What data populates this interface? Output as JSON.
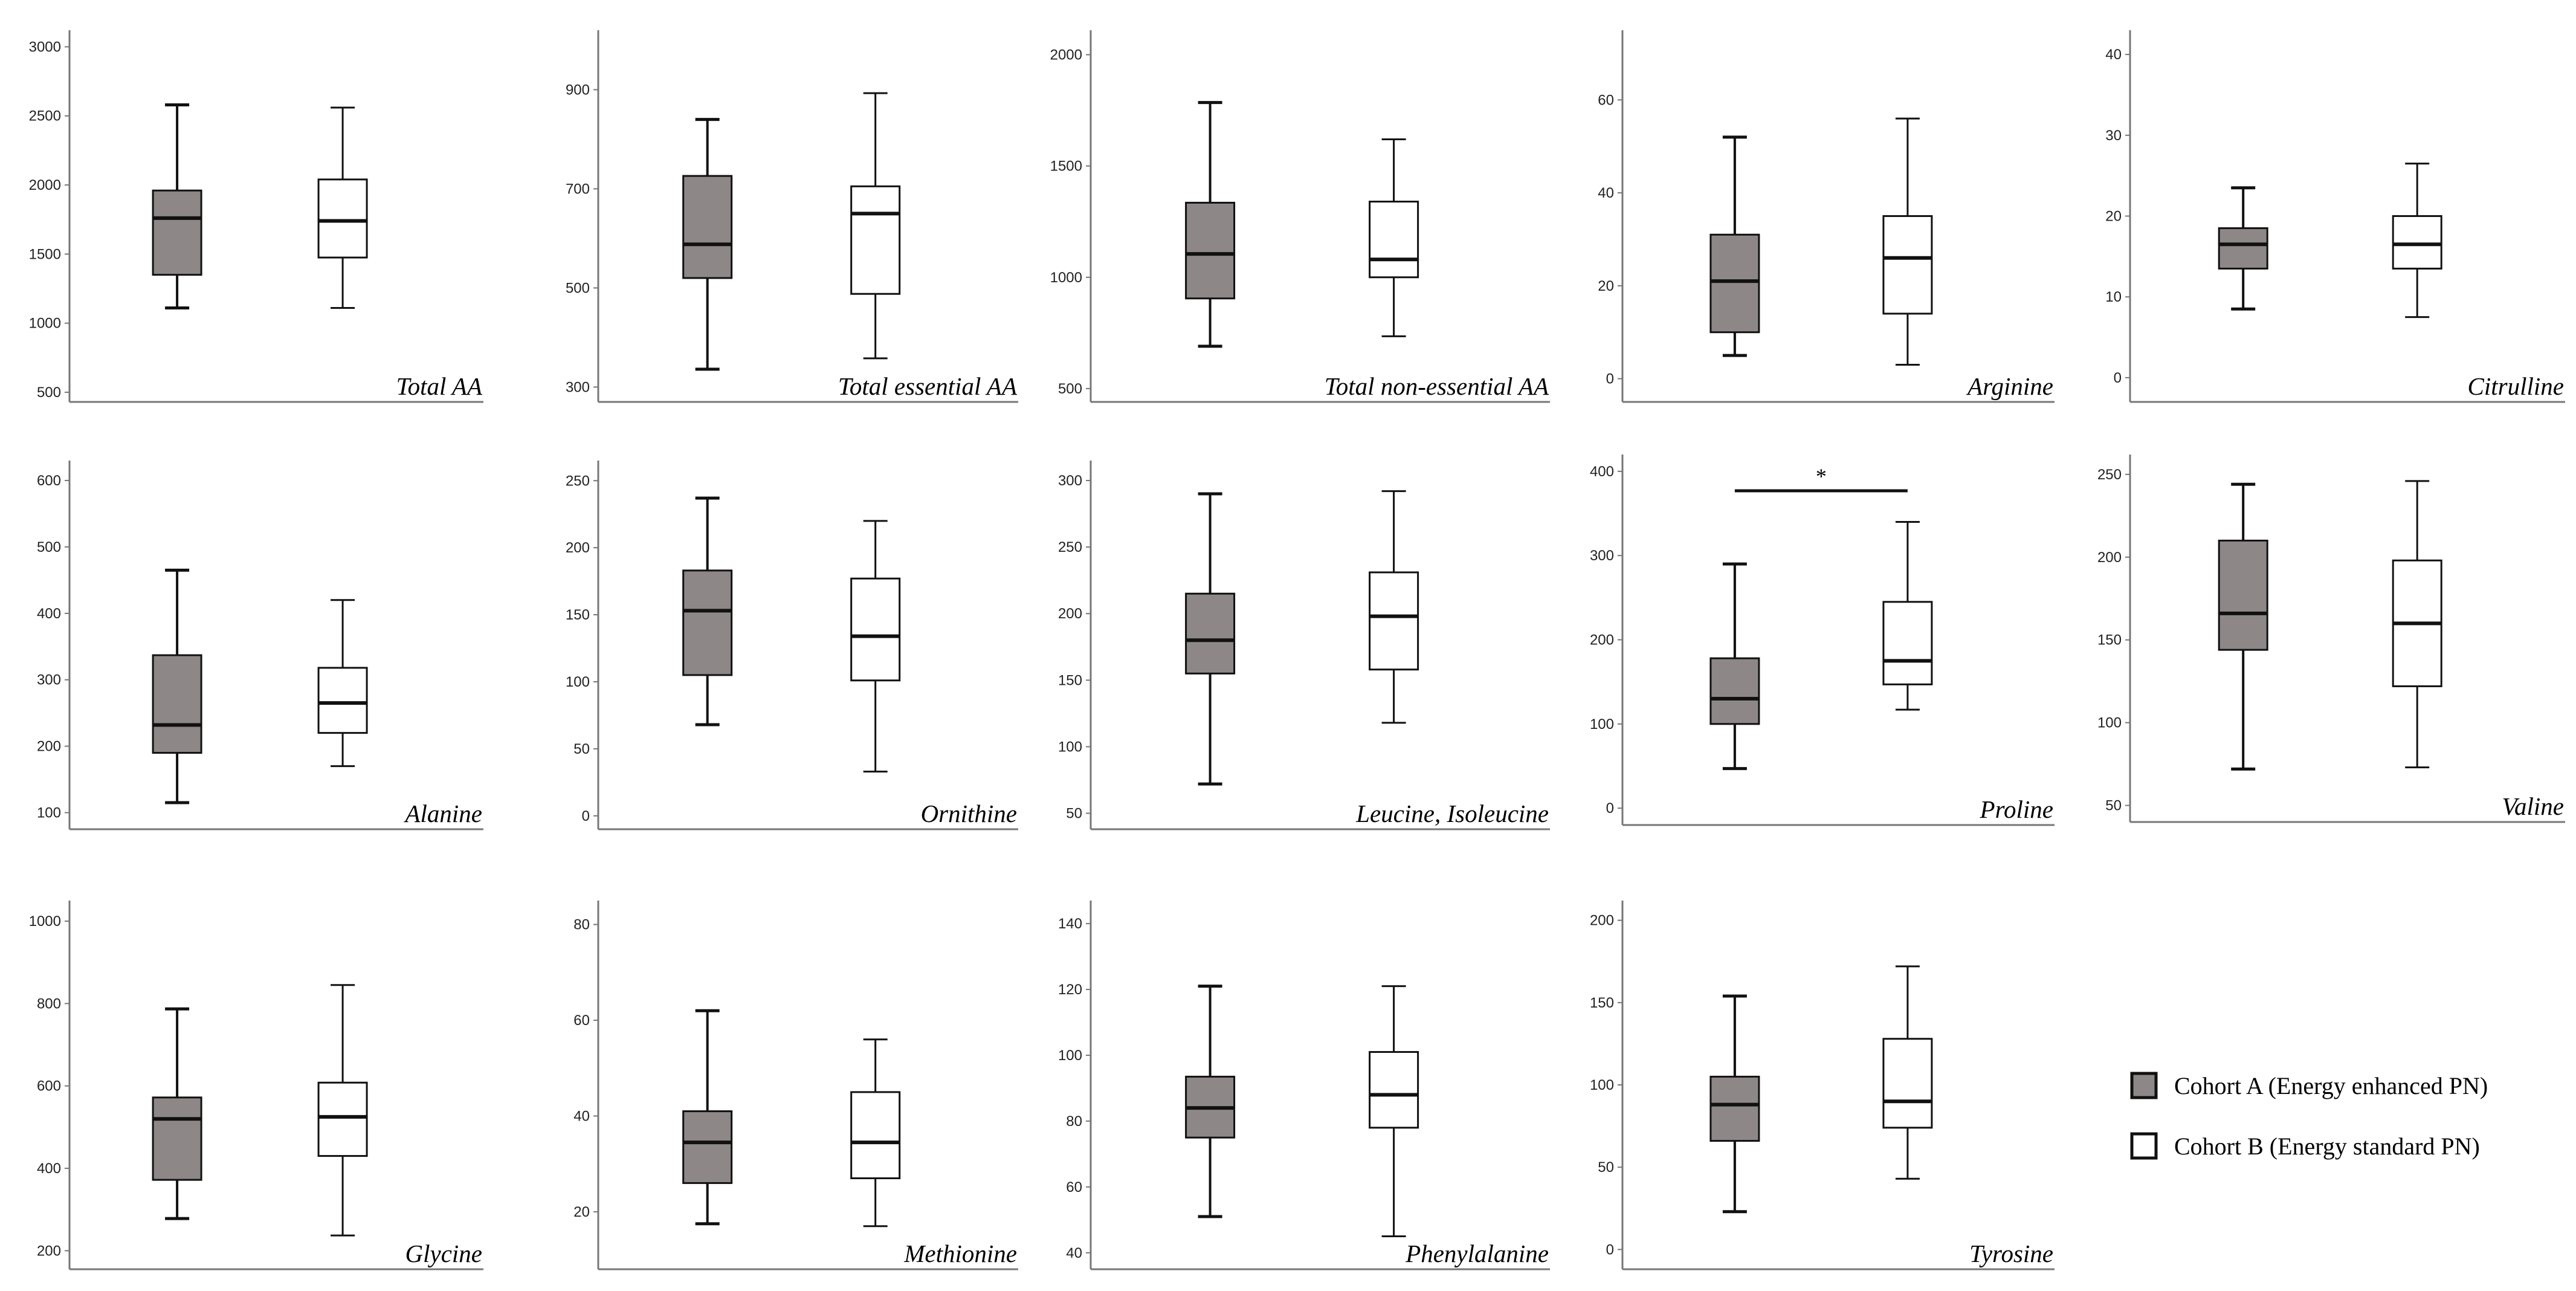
{
  "chart_data": [
    {
      "type": "box",
      "title": "Total AA",
      "yticks": [
        500,
        1000,
        1500,
        2000,
        2500,
        3000
      ],
      "ylim": [
        430,
        3120
      ],
      "series": [
        {
          "name": "Cohort A",
          "min": 1110,
          "q1": 1350,
          "median": 1760,
          "q3": 1960,
          "max": 2580
        },
        {
          "name": "Cohort B",
          "min": 1110,
          "q1": 1475,
          "median": 1740,
          "q3": 2040,
          "max": 2560
        }
      ]
    },
    {
      "type": "box",
      "title": "Total essential AA",
      "yticks": [
        300,
        500,
        700,
        900
      ],
      "ylim": [
        270,
        1020
      ],
      "series": [
        {
          "name": "Cohort A",
          "min": 336,
          "q1": 520,
          "median": 588,
          "q3": 726,
          "max": 840
        },
        {
          "name": "Cohort B",
          "min": 358,
          "q1": 488,
          "median": 650,
          "q3": 705,
          "max": 893
        }
      ]
    },
    {
      "type": "box",
      "title": "Total non-essential AA",
      "yticks": [
        500,
        1000,
        1500,
        2000
      ],
      "ylim": [
        440,
        2110
      ],
      "series": [
        {
          "name": "Cohort A",
          "min": 690,
          "q1": 905,
          "median": 1105,
          "q3": 1335,
          "max": 1785
        },
        {
          "name": "Cohort B",
          "min": 735,
          "q1": 1000,
          "median": 1080,
          "q3": 1340,
          "max": 1620
        }
      ]
    },
    {
      "type": "box",
      "title": "Arginine",
      "yticks": [
        0,
        20,
        40,
        60
      ],
      "ylim": [
        -5,
        75
      ],
      "series": [
        {
          "name": "Cohort A",
          "min": 5,
          "q1": 10,
          "median": 21,
          "q3": 31,
          "max": 52
        },
        {
          "name": "Cohort B",
          "min": 3,
          "q1": 14,
          "median": 26,
          "q3": 35,
          "max": 56
        }
      ]
    },
    {
      "type": "box",
      "title": "Citrulline",
      "yticks": [
        0,
        10,
        20,
        30,
        40
      ],
      "ylim": [
        -3,
        43
      ],
      "series": [
        {
          "name": "Cohort A",
          "min": 8.5,
          "q1": 13.5,
          "median": 16.5,
          "q3": 18.5,
          "max": 23.5
        },
        {
          "name": "Cohort B",
          "min": 7.5,
          "q1": 13.5,
          "median": 16.5,
          "q3": 20,
          "max": 26.5
        }
      ]
    },
    {
      "type": "box",
      "title": "Alanine",
      "yticks": [
        100,
        200,
        300,
        400,
        500,
        600
      ],
      "ylim": [
        75,
        630
      ],
      "series": [
        {
          "name": "Cohort A",
          "min": 115,
          "q1": 190,
          "median": 232,
          "q3": 337,
          "max": 465
        },
        {
          "name": "Cohort B",
          "min": 170,
          "q1": 220,
          "median": 265,
          "q3": 318,
          "max": 420
        }
      ]
    },
    {
      "type": "box",
      "title": "Ornithine",
      "yticks": [
        0,
        50,
        100,
        150,
        200,
        250
      ],
      "ylim": [
        -10,
        265
      ],
      "series": [
        {
          "name": "Cohort A",
          "min": 68,
          "q1": 105,
          "median": 153,
          "q3": 183,
          "max": 237
        },
        {
          "name": "Cohort B",
          "min": 33,
          "q1": 101,
          "median": 134,
          "q3": 177,
          "max": 220
        }
      ]
    },
    {
      "type": "box",
      "title": "Leucine, Isoleucine",
      "yticks": [
        50,
        100,
        150,
        200,
        250,
        300
      ],
      "ylim": [
        38,
        315
      ],
      "series": [
        {
          "name": "Cohort A",
          "min": 72,
          "q1": 155,
          "median": 180,
          "q3": 215,
          "max": 290
        },
        {
          "name": "Cohort B",
          "min": 118,
          "q1": 158,
          "median": 198,
          "q3": 231,
          "max": 292
        }
      ]
    },
    {
      "type": "box",
      "title": "Proline",
      "yticks": [
        0,
        100,
        200,
        300,
        400
      ],
      "ylim": [
        -20,
        420
      ],
      "significance": "*",
      "series": [
        {
          "name": "Cohort A",
          "min": 47,
          "q1": 100,
          "median": 130,
          "q3": 178,
          "max": 290
        },
        {
          "name": "Cohort B",
          "min": 117,
          "q1": 147,
          "median": 175,
          "q3": 245,
          "max": 340
        }
      ]
    },
    {
      "type": "box",
      "title": "Valine",
      "yticks": [
        50,
        100,
        150,
        200,
        250
      ],
      "ylim": [
        40,
        262
      ],
      "series": [
        {
          "name": "Cohort A",
          "min": 72,
          "q1": 144,
          "median": 166,
          "q3": 210,
          "max": 244
        },
        {
          "name": "Cohort B",
          "min": 73,
          "q1": 122,
          "median": 160,
          "q3": 198,
          "max": 246
        }
      ]
    },
    {
      "type": "box",
      "title": "Glycine",
      "yticks": [
        200,
        400,
        600,
        800,
        1000
      ],
      "ylim": [
        155,
        1050
      ],
      "series": [
        {
          "name": "Cohort A",
          "min": 278,
          "q1": 372,
          "median": 520,
          "q3": 572,
          "max": 787
        },
        {
          "name": "Cohort B",
          "min": 237,
          "q1": 430,
          "median": 525,
          "q3": 608,
          "max": 845
        }
      ]
    },
    {
      "type": "box",
      "title": "Methionine",
      "yticks": [
        20,
        40,
        60,
        80
      ],
      "ylim": [
        8,
        85
      ],
      "series": [
        {
          "name": "Cohort A",
          "min": 17.5,
          "q1": 26,
          "median": 34.5,
          "q3": 41,
          "max": 62
        },
        {
          "name": "Cohort B",
          "min": 17,
          "q1": 27,
          "median": 34.5,
          "q3": 45,
          "max": 56
        }
      ]
    },
    {
      "type": "box",
      "title": "Phenylalanine",
      "yticks": [
        40,
        60,
        80,
        100,
        120,
        140
      ],
      "ylim": [
        35,
        147
      ],
      "series": [
        {
          "name": "Cohort A",
          "min": 51,
          "q1": 75,
          "median": 84,
          "q3": 93.5,
          "max": 121
        },
        {
          "name": "Cohort B",
          "min": 45,
          "q1": 78,
          "median": 88,
          "q3": 101,
          "max": 121
        }
      ]
    },
    {
      "type": "box",
      "title": "Tyrosine",
      "yticks": [
        0,
        50,
        100,
        150,
        200
      ],
      "ylim": [
        -12,
        212
      ],
      "series": [
        {
          "name": "Cohort A",
          "min": 23,
          "q1": 66,
          "median": 88,
          "q3": 105,
          "max": 154
        },
        {
          "name": "Cohort B",
          "min": 43,
          "q1": 74,
          "median": 90,
          "q3": 128,
          "max": 172
        }
      ]
    }
  ],
  "legend": [
    {
      "label": "Cohort A (Energy enhanced PN)",
      "color": "#8e8787"
    },
    {
      "label": "Cohort B (Energy standard  PN)",
      "color": "#ffffff"
    }
  ],
  "colors": {
    "cohort_a": "#8e8787",
    "cohort_b": "#ffffff",
    "line": "#111111",
    "axis": "#777777"
  }
}
